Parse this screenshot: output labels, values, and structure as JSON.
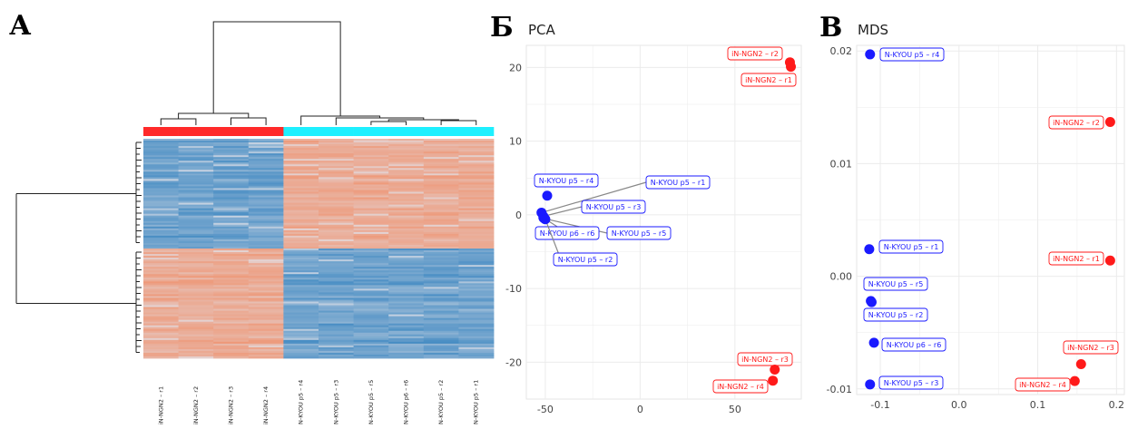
{
  "panels": {
    "a": {
      "letter": "А"
    },
    "b": {
      "letter": "Б"
    },
    "c": {
      "letter": "В"
    }
  },
  "colors": {
    "ngn2": "#ff1a1a",
    "kyou": "#1a1aff",
    "group_bar_ngn2": "#ff2a2a",
    "group_bar_kyou": "#1ef0ff"
  },
  "chart_data": [
    {
      "type": "heatmap",
      "columns": [
        "iN-NGN2 – r1",
        "iN-NGN2 – r2",
        "iN-NGN2 – r3",
        "iN-NGN2 – r4",
        "N-KYOU p5 – r4",
        "N-KYOU p5 – r3",
        "N-KYOU p5 – r5",
        "N-KYOU p6 – r6",
        "N-KYOU p5 – r2",
        "N-KYOU p5 – r1"
      ],
      "column_groups": [
        "ngn2",
        "ngn2",
        "ngn2",
        "ngn2",
        "kyou",
        "kyou",
        "kyou",
        "kyou",
        "kyou",
        "kyou"
      ],
      "row_blocks": [
        {
          "pattern": [
            "low",
            "low",
            "low",
            "low",
            "high",
            "high",
            "high",
            "high",
            "high",
            "high"
          ]
        },
        {
          "pattern": [
            "high",
            "high",
            "high",
            "high",
            "low",
            "low",
            "low",
            "low",
            "low",
            "low"
          ]
        }
      ],
      "dendrogram_rows": true,
      "dendrogram_columns": true
    },
    {
      "type": "scatter",
      "title": "PCA",
      "xlim": [
        -60,
        85
      ],
      "ylim": [
        -25,
        23
      ],
      "xticks": [
        -50,
        0,
        50
      ],
      "yticks": [
        20,
        10,
        0,
        -10,
        -20
      ],
      "grid": true,
      "points": [
        {
          "label": "iN-NGN2 – r2",
          "x": 79,
          "y": 20.7,
          "group": "ngn2"
        },
        {
          "label": "iN-NGN2 – r1",
          "x": 79.5,
          "y": 20.1,
          "group": "ngn2"
        },
        {
          "label": "iN-NGN2 – r3",
          "x": 71,
          "y": -21,
          "group": "ngn2"
        },
        {
          "label": "iN-NGN2 – r4",
          "x": 70,
          "y": -22.5,
          "group": "ngn2"
        },
        {
          "label": "N-KYOU p5 – r4",
          "x": -49,
          "y": 2.6,
          "group": "kyou"
        },
        {
          "label": "N-KYOU p5 – r1",
          "x": -52,
          "y": 0.3,
          "group": "kyou"
        },
        {
          "label": "N-KYOU p5 – r3",
          "x": -51,
          "y": -0.2,
          "group": "kyou"
        },
        {
          "label": "N-KYOU p5 – r5",
          "x": -50.5,
          "y": -0.5,
          "group": "kyou"
        },
        {
          "label": "N-KYOU p6 – r6",
          "x": -51,
          "y": -0.4,
          "group": "kyou"
        },
        {
          "label": "N-KYOU p5 – r2",
          "x": -50,
          "y": -0.6,
          "group": "kyou"
        }
      ]
    },
    {
      "type": "scatter",
      "title": "MDS",
      "xlim": [
        -0.13,
        0.21
      ],
      "ylim": [
        -0.0105,
        0.0205
      ],
      "xticks": [
        "-0.1",
        "0.0",
        "0.1",
        "0.2"
      ],
      "xtick_values": [
        -0.1,
        0.0,
        0.1,
        0.2
      ],
      "yticks": [
        "0.02",
        "0.01",
        "0.00",
        "-0.01"
      ],
      "ytick_values": [
        0.02,
        0.01,
        0.0,
        -0.01
      ],
      "grid": true,
      "points": [
        {
          "label": "N-KYOU p5 – r4",
          "x": -0.113,
          "y": 0.0197,
          "group": "kyou"
        },
        {
          "label": "iN-NGN2 – r2",
          "x": 0.192,
          "y": 0.0137,
          "group": "ngn2"
        },
        {
          "label": "N-KYOU p5 – r1",
          "x": -0.114,
          "y": 0.0024,
          "group": "kyou"
        },
        {
          "label": "iN-NGN2 – r1",
          "x": 0.192,
          "y": 0.0014,
          "group": "ngn2"
        },
        {
          "label": "N-KYOU p5 – r5",
          "x": -0.112,
          "y": -0.0022,
          "group": "kyou"
        },
        {
          "label": "N-KYOU p5 – r2",
          "x": -0.111,
          "y": -0.0023,
          "group": "kyou"
        },
        {
          "label": "N-KYOU p6 – r6",
          "x": -0.108,
          "y": -0.0059,
          "group": "kyou"
        },
        {
          "label": "iN-NGN2 – r3",
          "x": 0.155,
          "y": -0.0078,
          "group": "ngn2"
        },
        {
          "label": "N-KYOU p5 – r3",
          "x": -0.113,
          "y": -0.0096,
          "group": "kyou"
        },
        {
          "label": "iN-NGN2 – r4",
          "x": 0.147,
          "y": -0.0093,
          "group": "ngn2"
        }
      ]
    }
  ]
}
